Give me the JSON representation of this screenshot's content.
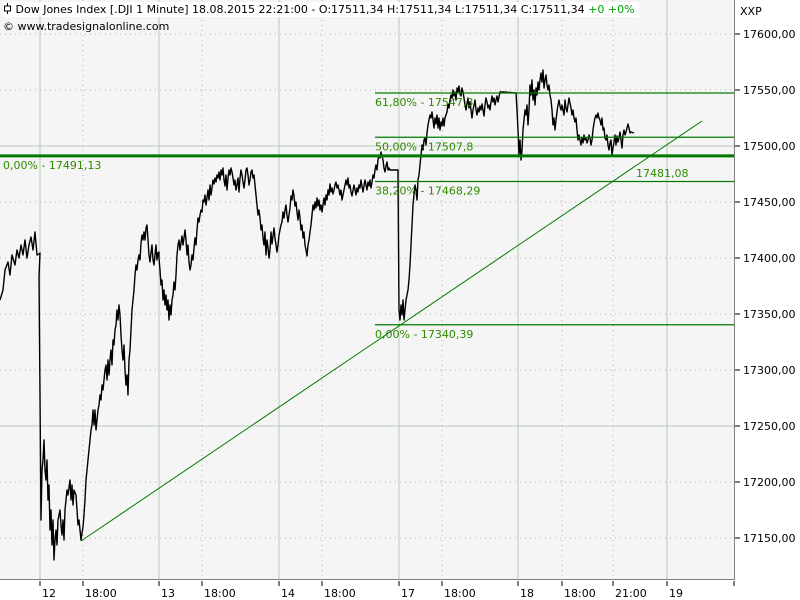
{
  "header": {
    "symbol_icon": "candle-icon",
    "title": "Dow Jones Index [.DJI  1 Minute] 18.08.2015 22:21:00 - O:17511,34 H:17511,34 L:17511,34 C:17511,34",
    "change": "+0 +0%",
    "source": "© www.tradesignalonline.com"
  },
  "axis": {
    "title": "XXP"
  },
  "colors": {
    "background": "#f5f5f5",
    "price_line": "#000000",
    "fib_lines": "#007a00",
    "fib_text": "#2e8b00",
    "grid": "#b8cbb8",
    "change_text": "#00a000"
  },
  "fibonacci": {
    "levels": [
      {
        "label": "61,80% - 17547,3",
        "value": 17547.3
      },
      {
        "label": "50,00% - 17507,8",
        "value": 17507.8
      },
      {
        "label": "38,20% - 17468,29",
        "value": 17468.29
      },
      {
        "label": "0,00% - 17340,39",
        "value": 17340.39
      }
    ],
    "base_label": "0,00% - 17491,13",
    "base_value": 17491.13
  },
  "trendline": {
    "label": "17481,08",
    "value": 17481.08
  },
  "chart_data": {
    "type": "line",
    "title": "Dow Jones Index [.DJI 1 Minute]",
    "xlabel": "",
    "ylabel": "XXP",
    "ylim": [
      17110,
      17630
    ],
    "grid": true,
    "yticks": [
      "17600,00",
      "17550,00",
      "17500,00",
      "17450,00",
      "17400,00",
      "17350,00",
      "17300,00",
      "17250,00",
      "17200,00",
      "17150,00"
    ],
    "xticks": [
      "12",
      "18:00",
      "13",
      "18:00",
      "14",
      "18:00",
      "17",
      "18:00",
      "18",
      "18:00",
      "21:00",
      "19"
    ],
    "series": [
      {
        "name": "DJI 1 Minute Close",
        "x": [
          "11 close",
          "12 open",
          "12 15:30",
          "12 16:30",
          "12 17:30",
          "12 18:00",
          "12 19:00",
          "12 20:00",
          "12 21:00",
          "12 22:00",
          "13 open",
          "13 16:00",
          "13 17:00",
          "13 18:00",
          "13 19:00",
          "13 20:00",
          "13 22:00",
          "14 open",
          "14 16:00",
          "14 17:00",
          "14 18:00",
          "14 19:00",
          "14 20:00",
          "14 22:00",
          "17 open",
          "17 16:00",
          "17 17:00",
          "17 18:00",
          "17 19:00",
          "17 20:00",
          "17 22:00",
          "18 open",
          "18 16:00",
          "18 17:00",
          "18 18:00",
          "18 19:00",
          "18 20:00",
          "18 21:00",
          "18 22:00"
        ],
        "values": [
          17410,
          17380,
          17230,
          17170,
          17150,
          17155,
          17240,
          17320,
          17400,
          17445,
          17460,
          17410,
          17390,
          17440,
          17480,
          17470,
          17480,
          17470,
          17430,
          17410,
          17460,
          17440,
          17450,
          17460,
          17485,
          17345,
          17470,
          17510,
          17550,
          17540,
          17550,
          17500,
          17560,
          17540,
          17510,
          17500,
          17515,
          17500,
          17511.34
        ]
      }
    ],
    "annotations": [
      {
        "text": "61,80% - 17547,3",
        "type": "fib_level"
      },
      {
        "text": "50,00% - 17507,8",
        "type": "fib_level"
      },
      {
        "text": "38,20% - 17468,29",
        "type": "fib_level"
      },
      {
        "text": "0,00% - 17340,39",
        "type": "fib_level"
      },
      {
        "text": "0,00% - 17491,13",
        "type": "horizontal_level"
      },
      {
        "text": "17481,08",
        "type": "trendline_value"
      }
    ],
    "last": {
      "open": 17511.34,
      "high": 17511.34,
      "low": 17511.34,
      "close": 17511.34,
      "change": "+0",
      "change_pct": "+0%",
      "timestamp": "18.08.2015 22:21:00"
    }
  }
}
